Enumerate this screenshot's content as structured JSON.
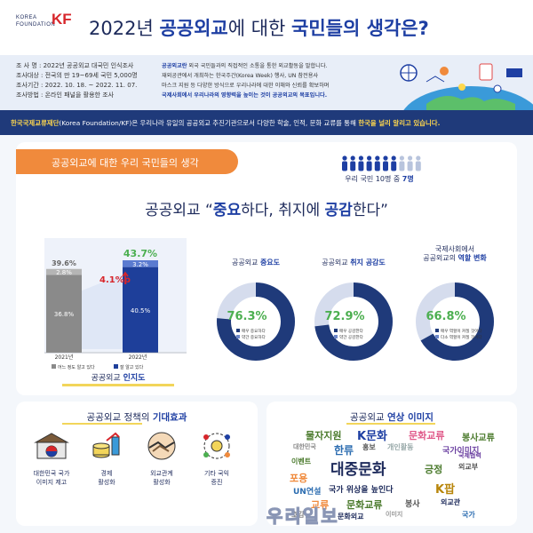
{
  "header": {
    "logo_text_1": "KOREA",
    "logo_text_2": "FOUNDATION",
    "logo_mark": "KF",
    "title_pre": "2022년 ",
    "title_b1": "공공외교",
    "title_mid": "에 대한 ",
    "title_b2": "국민들의 생각은?"
  },
  "survey": {
    "items": [
      "조  사  명 : 2022년 공공외교 대국민 인식조사",
      "조사대상 : 전국의 만 19~69세 국민 5,000명",
      "조사기간 : 2022. 10. 18. ~ 2022. 11. 07.",
      "조사방법 : 온라인 패널을 활용한 조사"
    ]
  },
  "description": {
    "hl1": "공공외교란",
    "line1": " 외국 국민들과의 직접적인 소통을 통한 외교활동을 말합니다.",
    "line2": "재외공관에서 개최하는 한국주간(Korea Week) 행사, UN 참전용사",
    "line3": "마스크 지원 등 다양한 방식으로 우리나라에 대한 이해와 신뢰를 확보하며",
    "hl2": "국제사회에서 우리나라의 영향력을 높이는 것이 공공외교의 목표입니다."
  },
  "banner": {
    "b1": "한국국제교류재단",
    "p1": "(Korea Foundation/KF)은 우리나라 유일의 공공외교 추진기관으로서 다양한 학술, 인적, 문화 교류를 통해 ",
    "b2": "한국을 널리 알리고 있습니다."
  },
  "section1": {
    "tag": "공공외교에 대한 우리 국민들의 생각",
    "people_note_pre": "우리 국민 10명 중 ",
    "people_note_b": "7명",
    "people_count": 10,
    "people_highlight": 7,
    "headline_pre": "공공외교 “",
    "headline_b1": "중요",
    "headline_mid": "하다, 취지에 ",
    "headline_b2": "공감",
    "headline_post": "한다”",
    "awareness_pre": "공공외교 ",
    "awareness_b": "인지도"
  },
  "chart_data": [
    {
      "type": "bar",
      "categories": [
        "2021년",
        "2022년"
      ],
      "series": [
        {
          "name": "어느 정도 알고 있다",
          "values": [
            36.8,
            40.5
          ]
        },
        {
          "name": "잘 알고 있다",
          "values": [
            2.8,
            3.2
          ]
        }
      ],
      "totals": [
        "39.6%",
        "43.7%"
      ],
      "value_labels": [
        [
          "36.8%",
          "2.8%"
        ],
        [
          "40.5%",
          "3.2%"
        ]
      ],
      "annotation": "4.1%p",
      "colors": {
        "2021": [
          "#8a8a8a",
          "#b5b5b5"
        ],
        "2022": [
          "#1e3f9a",
          "#5b7bd0"
        ],
        "total_2022": "#4caf50"
      },
      "ylim": [
        0,
        50
      ]
    },
    {
      "type": "pie",
      "title_pre": "공공외교 ",
      "title_b": "중요도",
      "value": 76.3,
      "value_label": "76.3%",
      "legend": [
        "매우 중요하다",
        "약간 중요하다"
      ]
    },
    {
      "type": "pie",
      "title_pre": "공공외교 ",
      "title_b": "취지 공감도",
      "value": 72.9,
      "value_label": "72.9%",
      "legend": [
        "매우 공감한다",
        "약간 공감한다"
      ]
    },
    {
      "type": "pie",
      "title_line1": "국제사회에서",
      "title_pre": "공공외교의 ",
      "title_b": "역할 변화",
      "value": 66.8,
      "value_label": "66.8%",
      "legend": [
        "매우 역할이 커질 것이다",
        "다소 역할이 커질 것이다"
      ]
    }
  ],
  "effects": {
    "title_pre": "공공외교 정책의 ",
    "title_b": "기대효과",
    "items": [
      {
        "icon": "landmark-icon",
        "l1": "대한민국 국가",
        "l2": "이미지 제고"
      },
      {
        "icon": "coins-icon",
        "l1": "경제",
        "l2": "활성화"
      },
      {
        "icon": "handshake-icon",
        "l1": "외교관계",
        "l2": "활성화"
      },
      {
        "icon": "strategy-icon",
        "l1": "기타 국익",
        "l2": "증진"
      }
    ]
  },
  "words": {
    "title_pre": "공공외교 ",
    "title_b": "연상 이미지",
    "items": [
      "물자지원",
      "K문화",
      "문화교류",
      "대한민국",
      "한류",
      "이벤트",
      "홍보",
      "개인활동",
      "국가이미지",
      "대중문화",
      "포용",
      "긍정",
      "외교부",
      "UN연설",
      "국가 위상을 높인다",
      "K팝",
      "교류",
      "문화교류",
      "봉사",
      "외교관",
      "호감",
      "국가",
      "이미지",
      "문화외교",
      "봉사교류",
      "국제협력"
    ]
  },
  "watermark": "우리일보",
  "colors": {
    "navy": "#1d2a5b",
    "accent_blue": "#1e3fa3",
    "orange": "#f08a3c",
    "banner": "#1f3a7a",
    "red": "#d7262b"
  }
}
